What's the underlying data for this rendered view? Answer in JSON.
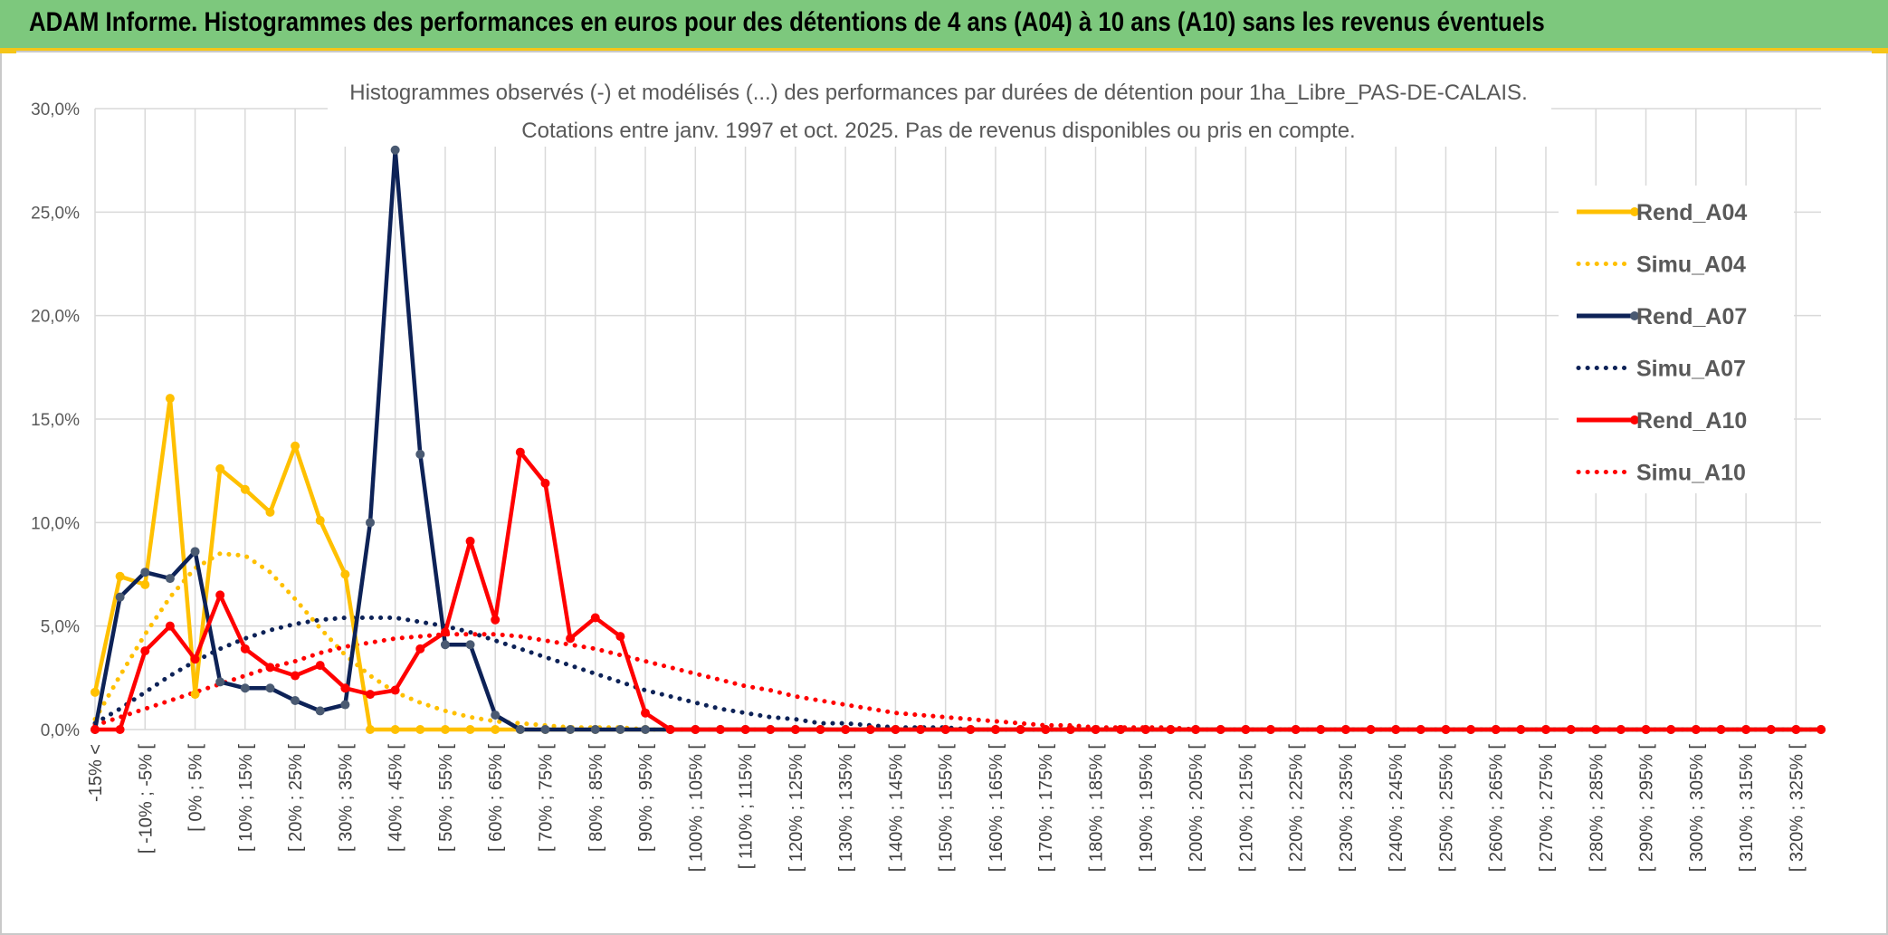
{
  "banner": {
    "title": "ADAM Informe. Histogrammes des performances en euros pour des détentions de 4 ans (A04) à 10 ans (A10) sans les revenus éventuels"
  },
  "chart_data": {
    "type": "line",
    "title": "Histogrammes observés (-) et modélisés (...) des performances par durées de détention pour 1ha_Libre_PAS-DE-CALAIS.",
    "subtitle": "Cotations entre janv. 1997 et oct. 2025. Pas de revenus disponibles ou pris en compte.",
    "xlabel": "",
    "ylabel": "",
    "ylim": [
      0,
      30
    ],
    "grid": true,
    "legend_position": "right",
    "y_ticks": [
      "0,0%",
      "5,0%",
      "10,0%",
      "15,0%",
      "20,0%",
      "25,0%",
      "30,0%"
    ],
    "x_tick_labels": [
      "-15% <",
      "[ -10% ; -5% [",
      "[ 0% ; 5% [",
      "[ 10% ; 15% [",
      "[ 20% ; 25% [",
      "[ 30% ; 35% [",
      "[ 40% ; 45% [",
      "[ 50% ; 55% [",
      "[ 60% ; 65% [",
      "[ 70% ; 75% [",
      "[ 80% ; 85% [",
      "[ 90% ; 95% [",
      "[ 100% ; 105% [",
      "[ 110% ; 115% [",
      "[ 120% ; 125% [",
      "[ 130% ; 135% [",
      "[ 140% ; 145% [",
      "[ 150% ; 155% [",
      "[ 160% ; 165% [",
      "[ 170% ; 175% [",
      "[ 180% ; 185% [",
      "[ 190% ; 195% [",
      "[ 200% ; 205% [",
      "[ 210% ; 215% [",
      "[ 220% ; 225% [",
      "[ 230% ; 235% [",
      "[ 240% ; 245% [",
      "[ 250% ; 255% [",
      "[ 260% ; 265% [",
      "[ 270% ; 275% [",
      "[ 280% ; 285% [",
      "[ 290% ; 295% [",
      "[ 300% ; 305% [",
      "[ 310% ; 315% [",
      "[ 320% ; 325% ["
    ],
    "category_count": 70,
    "series": [
      {
        "name": "Rend_A04",
        "style": "solid",
        "color": "#ffc000",
        "values": [
          1.8,
          7.4,
          7.0,
          16.0,
          1.7,
          12.6,
          11.6,
          10.5,
          13.7,
          10.1,
          7.5,
          0,
          0,
          0,
          0,
          0,
          0,
          0,
          0,
          0,
          0,
          0,
          0,
          0,
          0,
          0,
          0,
          0,
          0,
          0,
          0,
          0,
          0,
          0,
          0,
          0,
          0,
          0,
          0,
          0,
          0,
          0,
          0,
          0,
          0,
          0,
          0,
          0,
          0,
          0,
          0,
          0,
          0,
          0,
          0,
          0,
          0,
          0,
          0,
          0,
          0,
          0,
          0,
          0,
          0,
          0,
          0,
          0,
          0,
          0
        ]
      },
      {
        "name": "Simu_A04",
        "style": "dotted",
        "color": "#ffc000",
        "values": [
          0.5,
          2.6,
          4.6,
          6.4,
          7.8,
          8.5,
          8.4,
          7.6,
          6.3,
          4.9,
          3.6,
          2.6,
          1.8,
          1.3,
          0.9,
          0.6,
          0.4,
          0.3,
          0.2,
          0.1,
          0.1,
          0.1,
          0,
          0,
          0,
          0,
          0,
          0,
          0,
          0,
          0,
          0,
          0,
          0,
          0,
          0,
          0,
          0,
          0,
          0,
          0,
          0,
          0,
          0,
          0,
          0,
          0,
          0,
          0,
          0,
          0,
          0,
          0,
          0,
          0,
          0,
          0,
          0,
          0,
          0,
          0,
          0,
          0,
          0,
          0,
          0,
          0,
          0,
          0,
          0
        ]
      },
      {
        "name": "Rend_A07",
        "style": "solid",
        "color": "#0d2257",
        "values": [
          0,
          6.4,
          7.6,
          7.3,
          8.6,
          2.3,
          2.0,
          2.0,
          1.4,
          0.9,
          1.2,
          10.0,
          28.0,
          13.3,
          4.1,
          4.1,
          0.7,
          0,
          0,
          0,
          0,
          0,
          0,
          0,
          0,
          0,
          0,
          0,
          0,
          0,
          0,
          0,
          0,
          0,
          0,
          0,
          0,
          0,
          0,
          0,
          0,
          0,
          0,
          0,
          0,
          0,
          0,
          0,
          0,
          0,
          0,
          0,
          0,
          0,
          0,
          0,
          0,
          0,
          0,
          0,
          0,
          0,
          0,
          0,
          0,
          0,
          0,
          0,
          0,
          0
        ]
      },
      {
        "name": "Simu_A07",
        "style": "dotted",
        "color": "#0d2257",
        "values": [
          0.3,
          1.0,
          1.8,
          2.6,
          3.3,
          3.9,
          4.4,
          4.8,
          5.1,
          5.3,
          5.4,
          5.4,
          5.4,
          5.2,
          5.0,
          4.7,
          4.3,
          3.9,
          3.5,
          3.1,
          2.7,
          2.3,
          1.9,
          1.6,
          1.3,
          1.0,
          0.8,
          0.6,
          0.5,
          0.3,
          0.3,
          0.2,
          0.1,
          0.1,
          0.1,
          0,
          0,
          0,
          0,
          0,
          0,
          0,
          0,
          0,
          0,
          0,
          0,
          0,
          0,
          0,
          0,
          0,
          0,
          0,
          0,
          0,
          0,
          0,
          0,
          0,
          0,
          0,
          0,
          0,
          0,
          0,
          0,
          0,
          0,
          0
        ]
      },
      {
        "name": "Rend_A10",
        "style": "solid",
        "color": "#ff0000",
        "values": [
          0,
          0,
          3.8,
          5.0,
          3.4,
          6.5,
          3.9,
          3.0,
          2.6,
          3.1,
          2.0,
          1.7,
          1.9,
          3.9,
          4.7,
          9.1,
          5.3,
          13.4,
          11.9,
          4.4,
          5.4,
          4.5,
          0.8,
          0,
          0,
          0,
          0,
          0,
          0,
          0,
          0,
          0,
          0,
          0,
          0,
          0,
          0,
          0,
          0,
          0,
          0,
          0,
          0,
          0,
          0,
          0,
          0,
          0,
          0,
          0,
          0,
          0,
          0,
          0,
          0,
          0,
          0,
          0,
          0,
          0,
          0,
          0,
          0,
          0,
          0,
          0,
          0,
          0,
          0,
          0
        ]
      },
      {
        "name": "Simu_A10",
        "style": "dotted",
        "color": "#ff0000",
        "values": [
          0.2,
          0.6,
          1.0,
          1.4,
          1.8,
          2.2,
          2.6,
          3.0,
          3.3,
          3.7,
          4.0,
          4.2,
          4.4,
          4.5,
          4.6,
          4.6,
          4.6,
          4.5,
          4.3,
          4.1,
          3.9,
          3.6,
          3.3,
          3.0,
          2.7,
          2.4,
          2.1,
          1.9,
          1.6,
          1.4,
          1.2,
          1.0,
          0.8,
          0.7,
          0.6,
          0.5,
          0.4,
          0.3,
          0.2,
          0.2,
          0.1,
          0.1,
          0.1,
          0.1,
          0,
          0,
          0,
          0,
          0,
          0,
          0,
          0,
          0,
          0,
          0,
          0,
          0,
          0,
          0,
          0,
          0,
          0,
          0,
          0,
          0,
          0,
          0,
          0,
          0,
          0
        ]
      }
    ]
  }
}
